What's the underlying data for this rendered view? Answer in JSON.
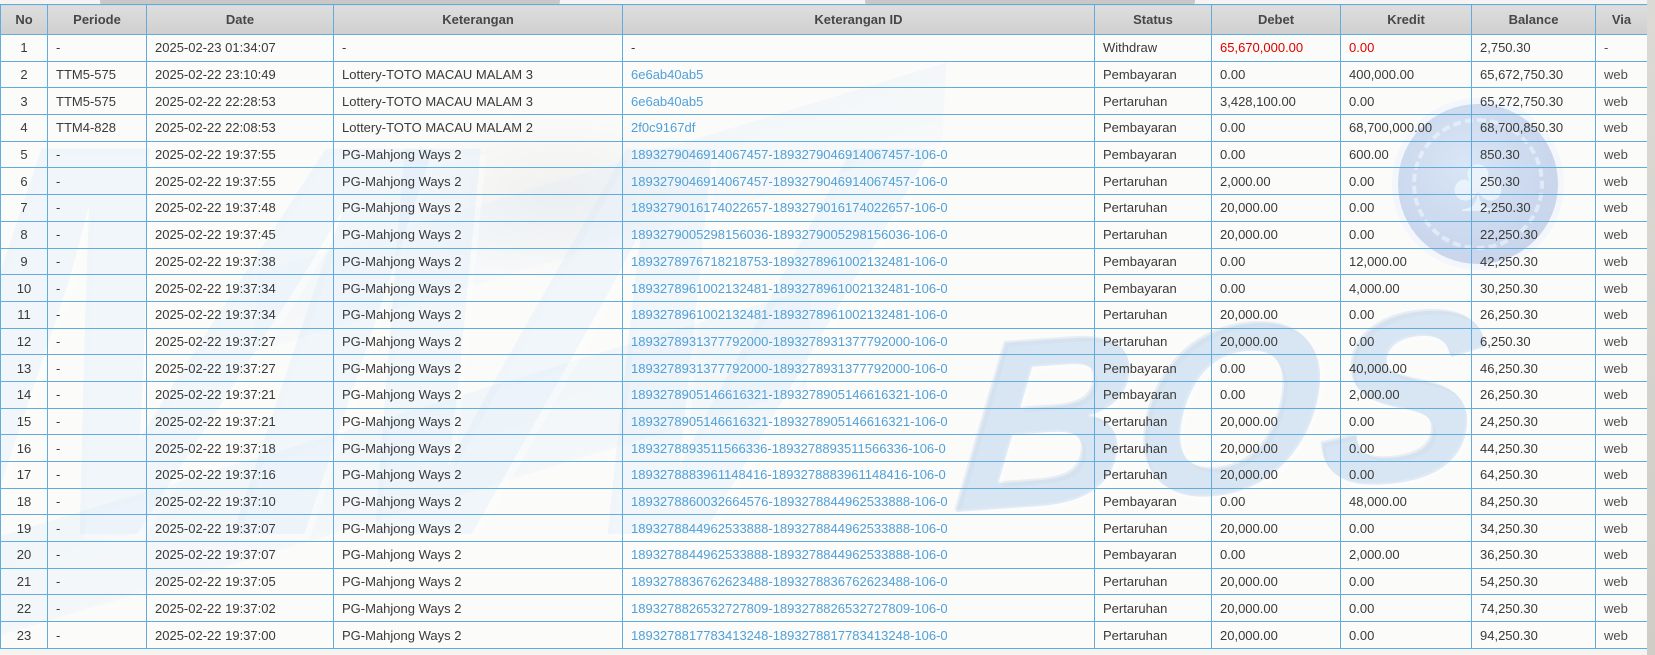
{
  "watermark": {
    "text_left": "MW",
    "text_right": "BOS",
    "chip_icon": "club-icon",
    "chip_glyph": "♣"
  },
  "colors": {
    "table_border": "#62abdd",
    "header_bg": "#d6d6d6",
    "link_blue": "#51a0d7",
    "negative_red": "#dd0000",
    "watermark_blue": "#5c98d4"
  },
  "table": {
    "columns": [
      {
        "key": "no",
        "label": "No"
      },
      {
        "key": "periode",
        "label": "Periode"
      },
      {
        "key": "date",
        "label": "Date"
      },
      {
        "key": "keterangan",
        "label": "Keterangan"
      },
      {
        "key": "keterangan_id",
        "label": "Keterangan ID"
      },
      {
        "key": "status",
        "label": "Status"
      },
      {
        "key": "debet",
        "label": "Debet"
      },
      {
        "key": "kredit",
        "label": "Kredit"
      },
      {
        "key": "balance",
        "label": "Balance"
      },
      {
        "key": "via",
        "label": "Via"
      }
    ],
    "rows": [
      {
        "no": "1",
        "periode": "-",
        "date": "2025-02-23 01:34:07",
        "keterangan": "-",
        "keterangan_id": "-",
        "status": "Withdraw",
        "debet": "65,670,000.00",
        "kredit": "0.00",
        "balance": "2,750.30",
        "via": "-",
        "amounts_red": true
      },
      {
        "no": "2",
        "periode": "TTM5-575",
        "date": "2025-02-22 23:10:49",
        "keterangan": "Lottery-TOTO MACAU MALAM 3",
        "keterangan_id": "6e6ab40ab5",
        "status": "Pembayaran",
        "debet": "0.00",
        "kredit": "400,000.00",
        "balance": "65,672,750.30",
        "via": "web"
      },
      {
        "no": "3",
        "periode": "TTM5-575",
        "date": "2025-02-22 22:28:53",
        "keterangan": "Lottery-TOTO MACAU MALAM 3",
        "keterangan_id": "6e6ab40ab5",
        "status": "Pertaruhan",
        "debet": "3,428,100.00",
        "kredit": "0.00",
        "balance": "65,272,750.30",
        "via": "web"
      },
      {
        "no": "4",
        "periode": "TTM4-828",
        "date": "2025-02-22 22:08:53",
        "keterangan": "Lottery-TOTO MACAU MALAM 2",
        "keterangan_id": "2f0c9167df",
        "status": "Pembayaran",
        "debet": "0.00",
        "kredit": "68,700,000.00",
        "balance": "68,700,850.30",
        "via": "web"
      },
      {
        "no": "5",
        "periode": "-",
        "date": "2025-02-22 19:37:55",
        "keterangan": "PG-Mahjong Ways 2",
        "keterangan_id": "1893279046914067457-1893279046914067457-106-0",
        "status": "Pembayaran",
        "debet": "0.00",
        "kredit": "600.00",
        "balance": "850.30",
        "via": "web"
      },
      {
        "no": "6",
        "periode": "-",
        "date": "2025-02-22 19:37:55",
        "keterangan": "PG-Mahjong Ways 2",
        "keterangan_id": "1893279046914067457-1893279046914067457-106-0",
        "status": "Pertaruhan",
        "debet": "2,000.00",
        "kredit": "0.00",
        "balance": "250.30",
        "via": "web"
      },
      {
        "no": "7",
        "periode": "-",
        "date": "2025-02-22 19:37:48",
        "keterangan": "PG-Mahjong Ways 2",
        "keterangan_id": "1893279016174022657-1893279016174022657-106-0",
        "status": "Pertaruhan",
        "debet": "20,000.00",
        "kredit": "0.00",
        "balance": "2,250.30",
        "via": "web"
      },
      {
        "no": "8",
        "periode": "-",
        "date": "2025-02-22 19:37:45",
        "keterangan": "PG-Mahjong Ways 2",
        "keterangan_id": "1893279005298156036-1893279005298156036-106-0",
        "status": "Pertaruhan",
        "debet": "20,000.00",
        "kredit": "0.00",
        "balance": "22,250.30",
        "via": "web"
      },
      {
        "no": "9",
        "periode": "-",
        "date": "2025-02-22 19:37:38",
        "keterangan": "PG-Mahjong Ways 2",
        "keterangan_id": "1893278976718218753-1893278961002132481-106-0",
        "status": "Pembayaran",
        "debet": "0.00",
        "kredit": "12,000.00",
        "balance": "42,250.30",
        "via": "web"
      },
      {
        "no": "10",
        "periode": "-",
        "date": "2025-02-22 19:37:34",
        "keterangan": "PG-Mahjong Ways 2",
        "keterangan_id": "1893278961002132481-1893278961002132481-106-0",
        "status": "Pembayaran",
        "debet": "0.00",
        "kredit": "4,000.00",
        "balance": "30,250.30",
        "via": "web"
      },
      {
        "no": "11",
        "periode": "-",
        "date": "2025-02-22 19:37:34",
        "keterangan": "PG-Mahjong Ways 2",
        "keterangan_id": "1893278961002132481-1893278961002132481-106-0",
        "status": "Pertaruhan",
        "debet": "20,000.00",
        "kredit": "0.00",
        "balance": "26,250.30",
        "via": "web"
      },
      {
        "no": "12",
        "periode": "-",
        "date": "2025-02-22 19:37:27",
        "keterangan": "PG-Mahjong Ways 2",
        "keterangan_id": "1893278931377792000-1893278931377792000-106-0",
        "status": "Pertaruhan",
        "debet": "20,000.00",
        "kredit": "0.00",
        "balance": "6,250.30",
        "via": "web"
      },
      {
        "no": "13",
        "periode": "-",
        "date": "2025-02-22 19:37:27",
        "keterangan": "PG-Mahjong Ways 2",
        "keterangan_id": "1893278931377792000-1893278931377792000-106-0",
        "status": "Pembayaran",
        "debet": "0.00",
        "kredit": "40,000.00",
        "balance": "46,250.30",
        "via": "web"
      },
      {
        "no": "14",
        "periode": "-",
        "date": "2025-02-22 19:37:21",
        "keterangan": "PG-Mahjong Ways 2",
        "keterangan_id": "1893278905146616321-1893278905146616321-106-0",
        "status": "Pembayaran",
        "debet": "0.00",
        "kredit": "2,000.00",
        "balance": "26,250.30",
        "via": "web"
      },
      {
        "no": "15",
        "periode": "-",
        "date": "2025-02-22 19:37:21",
        "keterangan": "PG-Mahjong Ways 2",
        "keterangan_id": "1893278905146616321-1893278905146616321-106-0",
        "status": "Pertaruhan",
        "debet": "20,000.00",
        "kredit": "0.00",
        "balance": "24,250.30",
        "via": "web"
      },
      {
        "no": "16",
        "periode": "-",
        "date": "2025-02-22 19:37:18",
        "keterangan": "PG-Mahjong Ways 2",
        "keterangan_id": "1893278893511566336-1893278893511566336-106-0",
        "status": "Pertaruhan",
        "debet": "20,000.00",
        "kredit": "0.00",
        "balance": "44,250.30",
        "via": "web"
      },
      {
        "no": "17",
        "periode": "-",
        "date": "2025-02-22 19:37:16",
        "keterangan": "PG-Mahjong Ways 2",
        "keterangan_id": "1893278883961148416-1893278883961148416-106-0",
        "status": "Pertaruhan",
        "debet": "20,000.00",
        "kredit": "0.00",
        "balance": "64,250.30",
        "via": "web"
      },
      {
        "no": "18",
        "periode": "-",
        "date": "2025-02-22 19:37:10",
        "keterangan": "PG-Mahjong Ways 2",
        "keterangan_id": "1893278860032664576-1893278844962533888-106-0",
        "status": "Pembayaran",
        "debet": "0.00",
        "kredit": "48,000.00",
        "balance": "84,250.30",
        "via": "web"
      },
      {
        "no": "19",
        "periode": "-",
        "date": "2025-02-22 19:37:07",
        "keterangan": "PG-Mahjong Ways 2",
        "keterangan_id": "1893278844962533888-1893278844962533888-106-0",
        "status": "Pertaruhan",
        "debet": "20,000.00",
        "kredit": "0.00",
        "balance": "34,250.30",
        "via": "web"
      },
      {
        "no": "20",
        "periode": "-",
        "date": "2025-02-22 19:37:07",
        "keterangan": "PG-Mahjong Ways 2",
        "keterangan_id": "1893278844962533888-1893278844962533888-106-0",
        "status": "Pembayaran",
        "debet": "0.00",
        "kredit": "2,000.00",
        "balance": "36,250.30",
        "via": "web"
      },
      {
        "no": "21",
        "periode": "-",
        "date": "2025-02-22 19:37:05",
        "keterangan": "PG-Mahjong Ways 2",
        "keterangan_id": "1893278836762623488-1893278836762623488-106-0",
        "status": "Pertaruhan",
        "debet": "20,000.00",
        "kredit": "0.00",
        "balance": "54,250.30",
        "via": "web"
      },
      {
        "no": "22",
        "periode": "-",
        "date": "2025-02-22 19:37:02",
        "keterangan": "PG-Mahjong Ways 2",
        "keterangan_id": "1893278826532727809-1893278826532727809-106-0",
        "status": "Pertaruhan",
        "debet": "20,000.00",
        "kredit": "0.00",
        "balance": "74,250.30",
        "via": "web"
      },
      {
        "no": "23",
        "periode": "-",
        "date": "2025-02-22 19:37:00",
        "keterangan": "PG-Mahjong Ways 2",
        "keterangan_id": "1893278817783413248-1893278817783413248-106-0",
        "status": "Pertaruhan",
        "debet": "20,000.00",
        "kredit": "0.00",
        "balance": "94,250.30",
        "via": "web"
      }
    ]
  }
}
